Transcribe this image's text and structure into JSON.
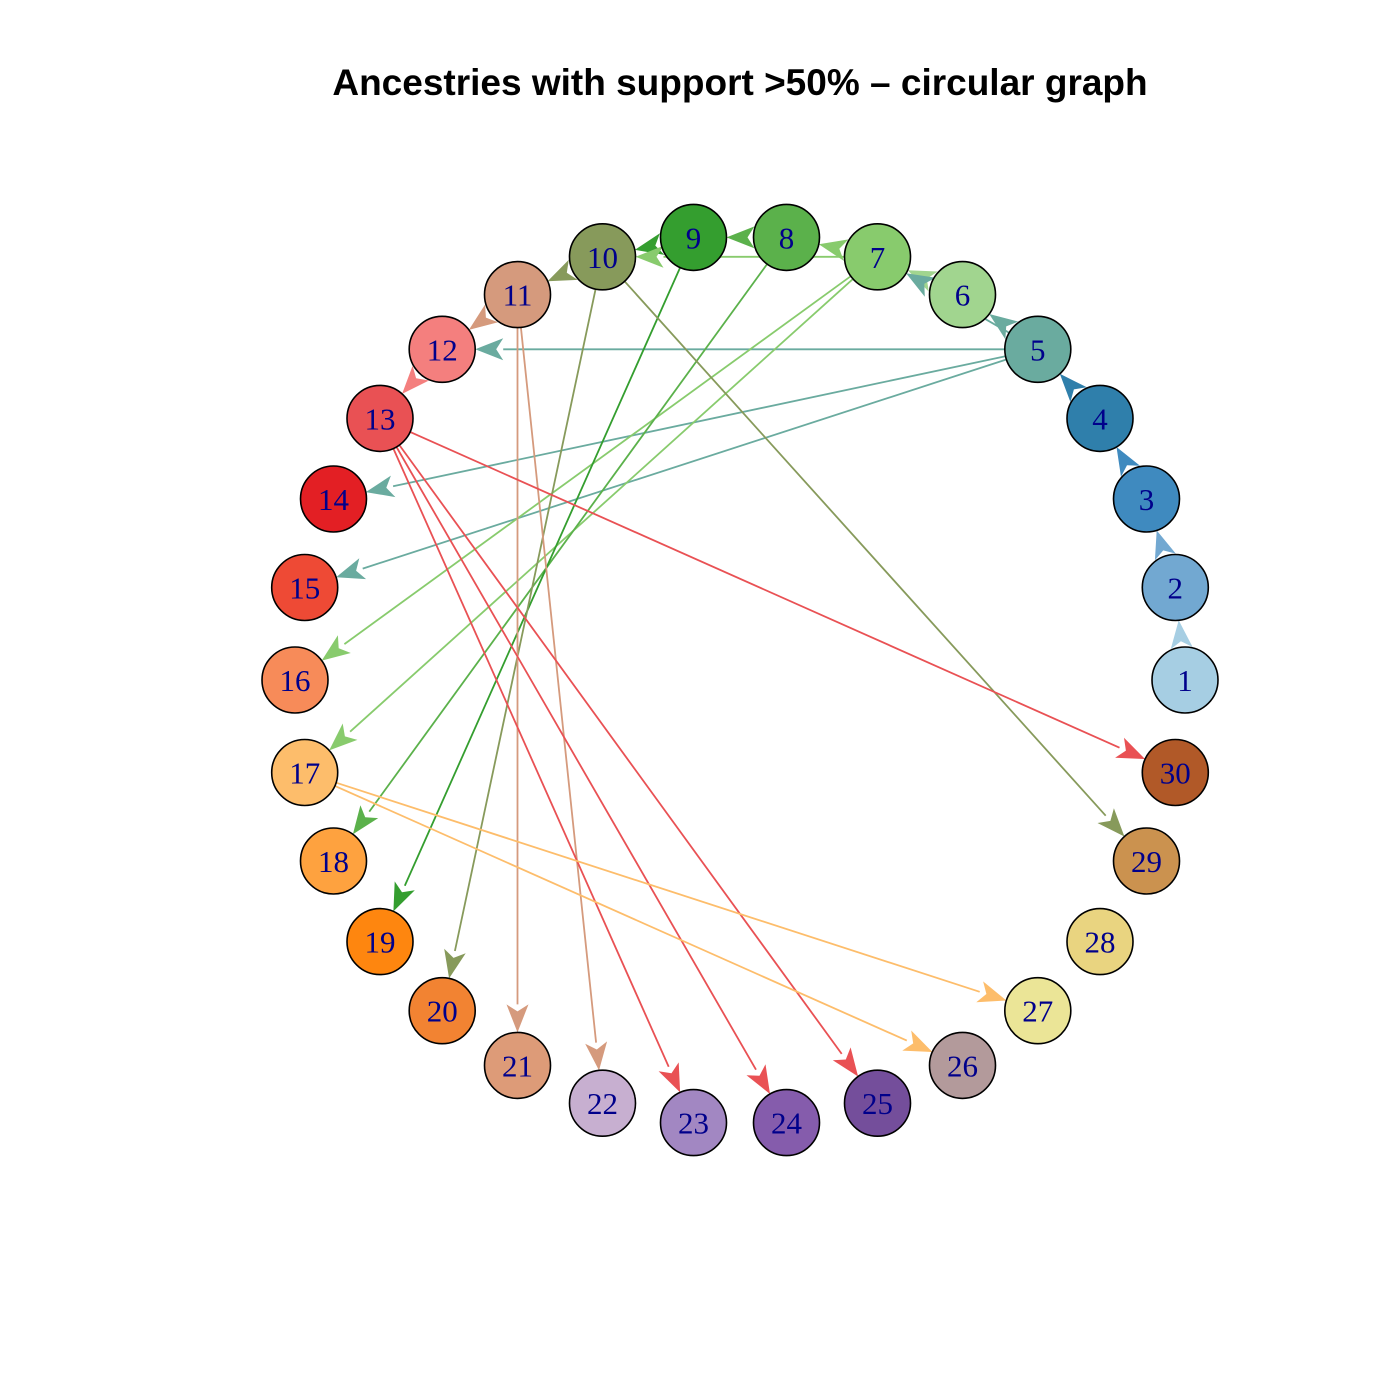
{
  "title": "Ancestries with support >50% – circular graph",
  "graph": {
    "layout": "circular",
    "nodes": [
      {
        "id": 1,
        "label": "1",
        "color": "#a6cee3"
      },
      {
        "id": 2,
        "label": "2",
        "color": "#72a8d1"
      },
      {
        "id": 3,
        "label": "3",
        "color": "#3f8abf"
      },
      {
        "id": 4,
        "label": "4",
        "color": "#2f7fab"
      },
      {
        "id": 5,
        "label": "5",
        "color": "#6aab9f"
      },
      {
        "id": 6,
        "label": "6",
        "color": "#a1d58f"
      },
      {
        "id": 7,
        "label": "7",
        "color": "#88cb6d"
      },
      {
        "id": 8,
        "label": "8",
        "color": "#5bb14b"
      },
      {
        "id": 9,
        "label": "9",
        "color": "#349e2f"
      },
      {
        "id": 10,
        "label": "10",
        "color": "#879a5b"
      },
      {
        "id": 11,
        "label": "11",
        "color": "#d59a7d"
      },
      {
        "id": 12,
        "label": "12",
        "color": "#f47f7e"
      },
      {
        "id": 13,
        "label": "13",
        "color": "#e95154"
      },
      {
        "id": 14,
        "label": "14",
        "color": "#e31f24"
      },
      {
        "id": 15,
        "label": "15",
        "color": "#ee4a35"
      },
      {
        "id": 16,
        "label": "16",
        "color": "#f78b59"
      },
      {
        "id": 17,
        "label": "17",
        "color": "#fdbd6b"
      },
      {
        "id": 18,
        "label": "18",
        "color": "#fea23f"
      },
      {
        "id": 19,
        "label": "19",
        "color": "#fe860f"
      },
      {
        "id": 20,
        "label": "20",
        "color": "#f28332"
      },
      {
        "id": 21,
        "label": "21",
        "color": "#dd9b78"
      },
      {
        "id": 22,
        "label": "22",
        "color": "#c7afd0"
      },
      {
        "id": 23,
        "label": "23",
        "color": "#a287c2"
      },
      {
        "id": 24,
        "label": "24",
        "color": "#855cac"
      },
      {
        "id": 25,
        "label": "25",
        "color": "#744e9b"
      },
      {
        "id": 26,
        "label": "26",
        "color": "#b39a9b"
      },
      {
        "id": 27,
        "label": "27",
        "color": "#ebe597"
      },
      {
        "id": 28,
        "label": "28",
        "color": "#e9d480"
      },
      {
        "id": 29,
        "label": "29",
        "color": "#cb924f"
      },
      {
        "id": 30,
        "label": "30",
        "color": "#b15928"
      }
    ],
    "edges": [
      {
        "from": 1,
        "to": 2
      },
      {
        "from": 2,
        "to": 3
      },
      {
        "from": 3,
        "to": 4
      },
      {
        "from": 4,
        "to": 5
      },
      {
        "from": 5,
        "to": 6
      },
      {
        "from": 6,
        "to": 7
      },
      {
        "from": 7,
        "to": 8
      },
      {
        "from": 8,
        "to": 9
      },
      {
        "from": 9,
        "to": 10
      },
      {
        "from": 10,
        "to": 11
      },
      {
        "from": 11,
        "to": 12
      },
      {
        "from": 12,
        "to": 13
      },
      {
        "from": 5,
        "to": 12
      },
      {
        "from": 5,
        "to": 14
      },
      {
        "from": 5,
        "to": 15
      },
      {
        "from": 5,
        "to": 7
      },
      {
        "from": 7,
        "to": 16
      },
      {
        "from": 7,
        "to": 17
      },
      {
        "from": 7,
        "to": 10
      },
      {
        "from": 8,
        "to": 18
      },
      {
        "from": 9,
        "to": 19
      },
      {
        "from": 10,
        "to": 20
      },
      {
        "from": 10,
        "to": 29
      },
      {
        "from": 11,
        "to": 21
      },
      {
        "from": 11,
        "to": 22
      },
      {
        "from": 13,
        "to": 23
      },
      {
        "from": 13,
        "to": 24
      },
      {
        "from": 13,
        "to": 25
      },
      {
        "from": 13,
        "to": 30
      },
      {
        "from": 17,
        "to": 26
      },
      {
        "from": 17,
        "to": 27
      }
    ]
  }
}
